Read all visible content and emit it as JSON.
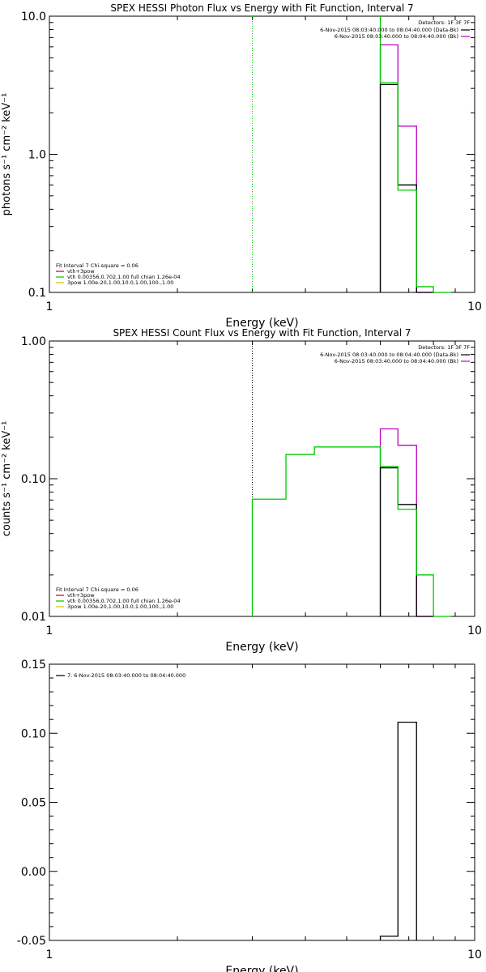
{
  "chart_data": [
    {
      "type": "line",
      "title": "SPEX HESSI Photon Flux vs Energy with Fit Function, Interval 7",
      "xlabel": "Energy (keV)",
      "ylabel": "photons s⁻¹ cm⁻² keV⁻¹",
      "xscale": "log",
      "yscale": "log",
      "xlim": [
        1,
        10
      ],
      "ylim": [
        0.1,
        10
      ],
      "x_tick_labels": [
        "1",
        "10"
      ],
      "y_tick_values": [
        0.1,
        1,
        10
      ],
      "y_tick_labels": [
        "0.1",
        "1.0",
        "10.0"
      ],
      "vlines": [
        {
          "x": 3.0,
          "color": "#00c800",
          "dotted": true
        }
      ],
      "legend_top_right": {
        "header": "Detectors: 1F 3F 7F",
        "entries": [
          {
            "text": "6-Nov-2015 08:03:40.000 to 08:04:40.000 (Data-Bk)",
            "color": "#000000"
          },
          {
            "text": "6-Nov-2015 08:03:40.000 to 08:04:40.000 (Bk)",
            "color": "#c000c0"
          }
        ]
      },
      "legend_bottom_left": {
        "header": "Fit Interval 7   Chi-square = 0.06",
        "entries": [
          {
            "text": "vth+3pow",
            "color": "#c80000"
          },
          {
            "text": "vth 0.00356,0.702,1.00  full chian 1.26e-04",
            "color": "#00c800"
          },
          {
            "text": "3pow 1.00e-20,1.00,10.0,1.00,100.,1.00",
            "color": "#c8c800"
          }
        ]
      },
      "series": [
        {
          "color": "#c000c0",
          "steps": [
            [
              6.0,
              6.6,
              6.2
            ],
            [
              6.6,
              7.3,
              1.6
            ],
            [
              7.3,
              8.0,
              0.1
            ]
          ]
        },
        {
          "color": "#000000",
          "steps": [
            [
              6.0,
              6.6,
              3.2
            ],
            [
              6.6,
              7.3,
              0.6
            ],
            [
              7.3,
              8.0,
              0.1
            ]
          ]
        },
        {
          "color": "#00c800",
          "steps": [
            [
              6.0,
              6.6,
              3.3
            ],
            [
              6.6,
              7.3,
              0.55
            ],
            [
              7.3,
              8.0,
              0.11
            ],
            [
              8.0,
              8.8,
              0.1
            ]
          ],
          "left_edge_from": 10
        }
      ]
    },
    {
      "type": "line",
      "title": "SPEX HESSI Count Flux vs Energy with Fit Function, Interval 7",
      "xlabel": "Energy (keV)",
      "ylabel": "counts s⁻¹ cm⁻² keV⁻¹",
      "xscale": "log",
      "yscale": "log",
      "xlim": [
        1,
        10
      ],
      "ylim": [
        0.01,
        1
      ],
      "x_tick_labels": [
        "1",
        "10"
      ],
      "y_tick_values": [
        0.01,
        0.1,
        1
      ],
      "y_tick_labels": [
        "0.01",
        "0.10",
        "1.00"
      ],
      "vlines": [
        {
          "x": 3.0,
          "color": "#000000",
          "dotted": true
        }
      ],
      "legend_top_right": {
        "header": "Detectors: 1F 3F 7F",
        "entries": [
          {
            "text": "6-Nov-2015 08:03:40.000 to 08:04:40.000 (Data-Bk)",
            "color": "#000000"
          },
          {
            "text": "6-Nov-2015 08:03:40.000 to 08:04:40.000 (Bk)",
            "color": "#c000c0"
          }
        ]
      },
      "legend_bottom_left": {
        "header": "Fit Interval 7   Chi-square = 0.06",
        "entries": [
          {
            "text": "vth+3pow",
            "color": "#c80000"
          },
          {
            "text": "vth 0.00356,0.702,1.00  full chian 1.26e-04",
            "color": "#00c800"
          },
          {
            "text": "3pow 1.00e-20,1.00,10.0,1.00,100.,1.00",
            "color": "#c8c800"
          }
        ]
      },
      "series": [
        {
          "color": "#c000c0",
          "steps": [
            [
              6.0,
              6.6,
              0.23
            ],
            [
              6.6,
              7.3,
              0.175
            ],
            [
              7.3,
              8.0,
              0.01
            ]
          ]
        },
        {
          "color": "#000000",
          "steps": [
            [
              6.0,
              6.6,
              0.12
            ],
            [
              6.6,
              7.3,
              0.065
            ],
            [
              7.3,
              8.0,
              0.01
            ]
          ]
        },
        {
          "color": "#00c800",
          "steps": [
            [
              3.0,
              3.6,
              0.071
            ],
            [
              3.6,
              4.2,
              0.15
            ],
            [
              4.2,
              5.1,
              0.17
            ],
            [
              5.1,
              6.0,
              0.17
            ],
            [
              6.0,
              6.6,
              0.123
            ],
            [
              6.6,
              7.3,
              0.06
            ],
            [
              7.3,
              8.0,
              0.02
            ],
            [
              8.0,
              8.8,
              0.01
            ]
          ]
        }
      ]
    },
    {
      "type": "line",
      "xlabel": "Energy (keV)",
      "xscale": "log",
      "yscale": "linear",
      "xlim": [
        1,
        10
      ],
      "ylim": [
        -0.05,
        0.15
      ],
      "x_tick_labels": [
        "1",
        "10"
      ],
      "y_tick_values": [
        -0.05,
        0.0,
        0.05,
        0.1,
        0.15
      ],
      "y_tick_labels": [
        "-0.05",
        "0.00",
        "0.05",
        "0.10",
        "0.15"
      ],
      "legend_top_left": {
        "entries": [
          {
            "text": "7.  6-Nov-2015 08:03:40.000 to 08:04:40.000",
            "color": "#000000"
          }
        ]
      },
      "series": [
        {
          "color": "#000000",
          "steps": [
            [
              6.0,
              6.6,
              -0.047
            ],
            [
              6.6,
              7.3,
              0.108
            ]
          ],
          "right_edge_to": -0.05
        }
      ]
    }
  ]
}
